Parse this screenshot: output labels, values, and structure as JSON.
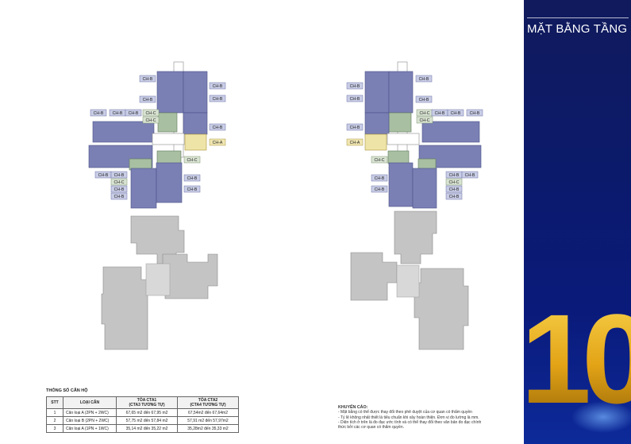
{
  "side_panel": {
    "title": "MẶT BẰNG TẦNG 10",
    "big_number": "10",
    "colors": {
      "navy": "#0b1a6e",
      "gold": "#e8b21c"
    }
  },
  "unit_tags": {
    "ch_a": "CH-A",
    "ch_b": "CH-B",
    "ch_c": "CH-C"
  },
  "apartment_table": {
    "heading": "THÔNG SỐ CĂN HỘ",
    "headers": {
      "stt": "STT",
      "type": "LOẠI CĂN",
      "cta1": "TÒA CTA1",
      "cta1_sub": "(CTA3 TƯƠNG TỰ)",
      "cta2": "TÒA CTA2",
      "cta2_sub": "(CTA4 TƯƠNG TỰ)"
    },
    "rows": [
      {
        "stt": "1",
        "type": "Căn loại A  (2PN + 2WC)",
        "cta1": "67,65 m2 đến 67,95 m2",
        "cta2": "67,54m2 đến 67,64m2"
      },
      {
        "stt": "2",
        "type": "Căn loại B  (2PN + 2WC)",
        "cta1": "57,75 m2 đến 57,84 m2",
        "cta2": "57,91 m2 đến 57,97m2"
      },
      {
        "stt": "3",
        "type": "Căn loại A  (1PN + 1WC)",
        "cta1": "35,14 m2 đến 35,22 m2",
        "cta2": "35,28m2 đến 35,33 m2"
      }
    ]
  },
  "note": {
    "title": "KHUYẾN CÁO:",
    "lines": [
      "- Mặt bằng có thể được thay đổi theo phê duyệt của cơ quan có thẩm quyền",
      "- Tỷ lệ không nhất thiết là tiêu chuẩn khi xây hoàn thiện. Đơn vị đo lường là mm.",
      "- Diện tích ở trên là đo đạc ước tính và có thể thay đổi theo văn bản đo đạc chính",
      "thức bởi các cơ quan có thẩm quyền."
    ]
  }
}
